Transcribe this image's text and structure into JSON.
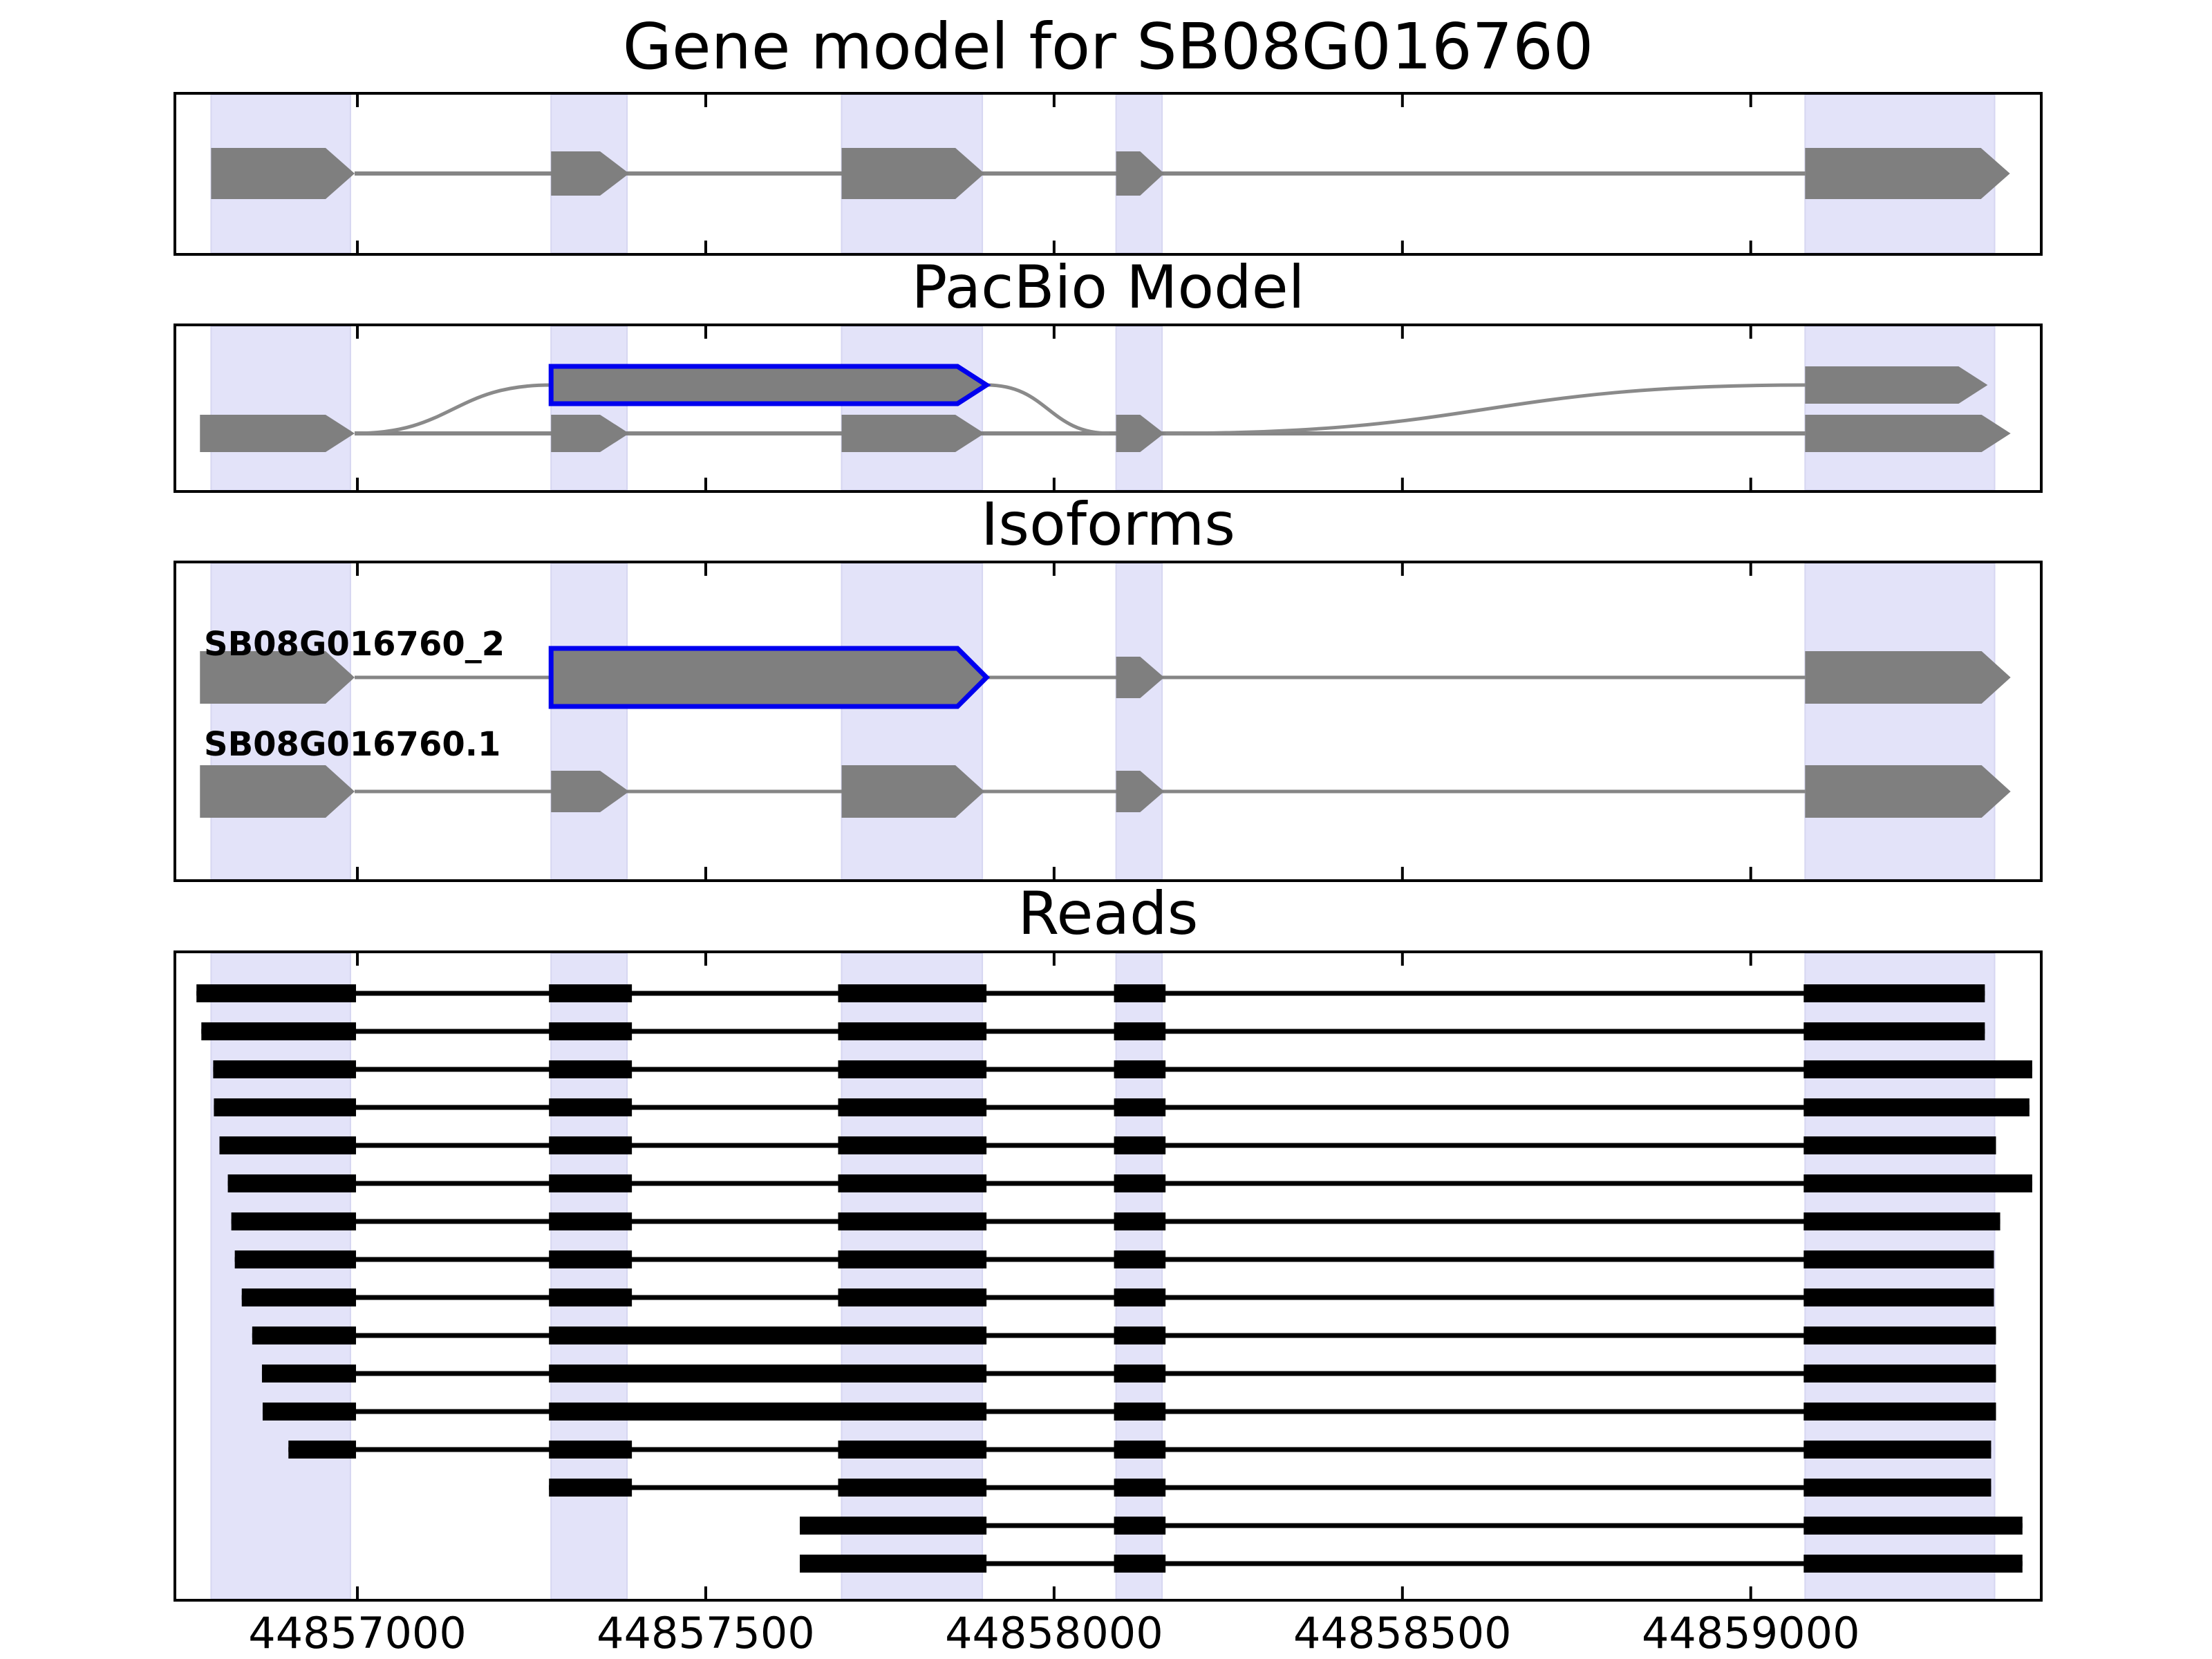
{
  "figure_title": "Gene model for SB08G016760",
  "axis": {
    "xlim": [
      44856740,
      44859415
    ],
    "tick_values": [
      44857000,
      44857500,
      44858000,
      44858500,
      44859000
    ],
    "tick_labels": [
      "44857000",
      "44857500",
      "44858000",
      "44858500",
      "44859000"
    ]
  },
  "colors": {
    "background": "#ffffff",
    "panel_border": "#000000",
    "highlight_band": "#e3e3f9",
    "highlight_band_edge": "#d6d6f1",
    "exon_gray": "#7f7f7f",
    "connector_gray": "#858585",
    "junction_curve_gray": "#8a8a8a",
    "accent_blue": "#0000ee",
    "read_black": "#000000",
    "text": "#000000"
  },
  "highlight_regions": [
    [
      44856790,
      44856990
    ],
    [
      44857278,
      44857387
    ],
    [
      44857695,
      44857897
    ],
    [
      44858089,
      44858155
    ],
    [
      44859078,
      44859350
    ]
  ],
  "chart_data": {
    "type": "genomic-tracks",
    "x_unit": "genomic position (bp)",
    "panels": [
      {
        "id": "gene_model",
        "title": "Gene model for SB08G016760",
        "exons": [
          {
            "start": 44856790,
            "end": 44856996
          },
          {
            "start": 44857278,
            "end": 44857390
          },
          {
            "start": 44857695,
            "end": 44857900
          },
          {
            "start": 44858089,
            "end": 44858158
          },
          {
            "start": 44859078,
            "end": 44859372
          }
        ]
      },
      {
        "id": "pacbio_model",
        "title": "PacBio Model",
        "baseline_exons": [
          {
            "start": 44856774,
            "end": 44856996
          },
          {
            "start": 44857278,
            "end": 44857390
          },
          {
            "start": 44857695,
            "end": 44857900
          },
          {
            "start": 44858089,
            "end": 44858158
          },
          {
            "start": 44859078,
            "end": 44859373
          }
        ],
        "elevated_exons": [
          {
            "start": 44857278,
            "end": 44857903,
            "highlighted": true
          },
          {
            "start": 44859078,
            "end": 44859340,
            "highlighted": false
          }
        ],
        "junction_curves": [
          {
            "x1": 44856996,
            "level1": "base",
            "x2": 44857278,
            "level2": "elevated"
          },
          {
            "x1": 44857903,
            "level1": "elevated",
            "x2": 44858080,
            "level2": "base"
          },
          {
            "x1": 44858160,
            "level1": "base",
            "x2": 44859078,
            "level2": "elevated"
          }
        ]
      },
      {
        "id": "isoforms",
        "title": "Isoforms",
        "isoforms": [
          {
            "name": "SB08G016760_2",
            "exons": [
              {
                "start": 44856774,
                "end": 44856996
              },
              {
                "start": 44857278,
                "end": 44857903,
                "highlighted": true
              },
              {
                "start": 44858089,
                "end": 44858158
              },
              {
                "start": 44859078,
                "end": 44859373
              }
            ]
          },
          {
            "name": "SB08G016760.1",
            "exons": [
              {
                "start": 44856774,
                "end": 44856996
              },
              {
                "start": 44857278,
                "end": 44857390
              },
              {
                "start": 44857695,
                "end": 44857900
              },
              {
                "start": 44858089,
                "end": 44858158
              },
              {
                "start": 44859078,
                "end": 44859373
              }
            ]
          }
        ]
      },
      {
        "id": "reads",
        "title": "Reads",
        "reads": [
          {
            "blocks": [
              [
                44856769,
                44856998
              ],
              [
                44857275,
                44857394
              ],
              [
                44857690,
                44857903
              ],
              [
                44858086,
                44858160
              ],
              [
                44859076,
                44859336
              ]
            ]
          },
          {
            "blocks": [
              [
                44856776,
                44856998
              ],
              [
                44857275,
                44857394
              ],
              [
                44857690,
                44857903
              ],
              [
                44858086,
                44858160
              ],
              [
                44859076,
                44859336
              ]
            ]
          },
          {
            "blocks": [
              [
                44856793,
                44856998
              ],
              [
                44857275,
                44857394
              ],
              [
                44857690,
                44857903
              ],
              [
                44858086,
                44858160
              ],
              [
                44859076,
                44859404
              ]
            ]
          },
          {
            "blocks": [
              [
                44856794,
                44856998
              ],
              [
                44857275,
                44857394
              ],
              [
                44857690,
                44857903
              ],
              [
                44858086,
                44858160
              ],
              [
                44859076,
                44859400
              ]
            ]
          },
          {
            "blocks": [
              [
                44856802,
                44856998
              ],
              [
                44857275,
                44857394
              ],
              [
                44857690,
                44857903
              ],
              [
                44858086,
                44858160
              ],
              [
                44859076,
                44859352
              ]
            ]
          },
          {
            "blocks": [
              [
                44856814,
                44856998
              ],
              [
                44857275,
                44857394
              ],
              [
                44857690,
                44857903
              ],
              [
                44858086,
                44858160
              ],
              [
                44859076,
                44859404
              ]
            ]
          },
          {
            "blocks": [
              [
                44856819,
                44856998
              ],
              [
                44857275,
                44857394
              ],
              [
                44857690,
                44857903
              ],
              [
                44858086,
                44858160
              ],
              [
                44859076,
                44859358
              ]
            ]
          },
          {
            "blocks": [
              [
                44856824,
                44856998
              ],
              [
                44857275,
                44857394
              ],
              [
                44857690,
                44857903
              ],
              [
                44858086,
                44858160
              ],
              [
                44859076,
                44859349
              ]
            ]
          },
          {
            "blocks": [
              [
                44856834,
                44856998
              ],
              [
                44857275,
                44857394
              ],
              [
                44857690,
                44857903
              ],
              [
                44858086,
                44858160
              ],
              [
                44859076,
                44859349
              ]
            ]
          },
          {
            "blocks": [
              [
                44856849,
                44856998
              ],
              [
                44857275,
                44857903
              ],
              [
                44858086,
                44858160
              ],
              [
                44859076,
                44859352
              ]
            ]
          },
          {
            "blocks": [
              [
                44856863,
                44856998
              ],
              [
                44857275,
                44857903
              ],
              [
                44858086,
                44858160
              ],
              [
                44859076,
                44859352
              ]
            ]
          },
          {
            "blocks": [
              [
                44856864,
                44856998
              ],
              [
                44857275,
                44857903
              ],
              [
                44858086,
                44858160
              ],
              [
                44859076,
                44859352
              ]
            ]
          },
          {
            "blocks": [
              [
                44856901,
                44856998
              ],
              [
                44857275,
                44857394
              ],
              [
                44857690,
                44857903
              ],
              [
                44858086,
                44858160
              ],
              [
                44859076,
                44859345
              ]
            ]
          },
          {
            "blocks": [
              [
                44857275,
                44857394
              ],
              [
                44857690,
                44857903
              ],
              [
                44858086,
                44858160
              ],
              [
                44859076,
                44859345
              ]
            ]
          },
          {
            "blocks": [
              [
                44857635,
                44857903
              ],
              [
                44858086,
                44858160
              ],
              [
                44859076,
                44859390
              ]
            ]
          },
          {
            "blocks": [
              [
                44857635,
                44857903
              ],
              [
                44858086,
                44858160
              ],
              [
                44859076,
                44859390
              ]
            ]
          }
        ]
      }
    ]
  }
}
